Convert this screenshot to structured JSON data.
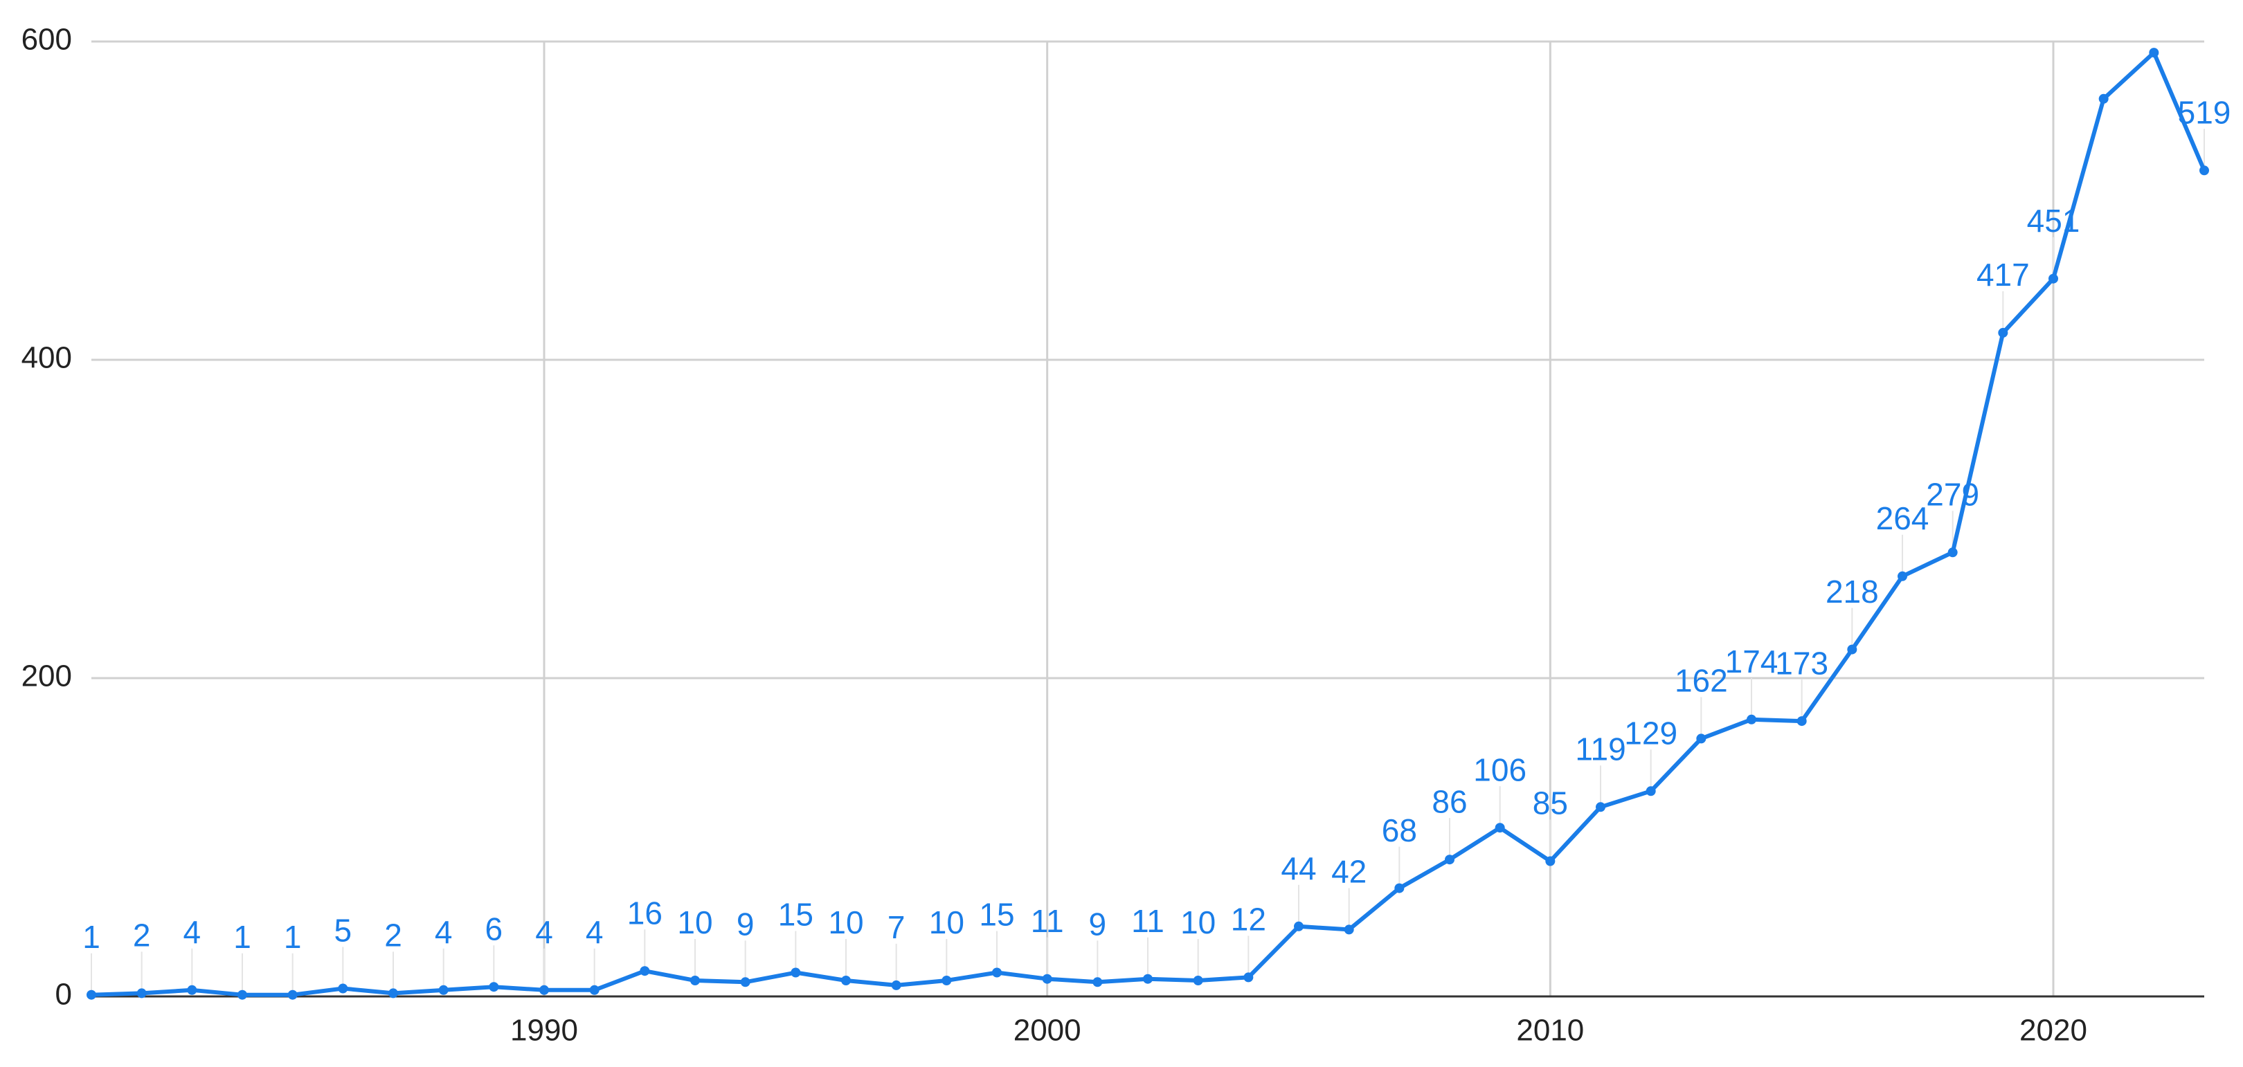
{
  "chart_data": {
    "type": "line",
    "x": [
      1981,
      1982,
      1983,
      1984,
      1985,
      1986,
      1987,
      1988,
      1989,
      1990,
      1991,
      1992,
      1993,
      1994,
      1995,
      1996,
      1997,
      1998,
      1999,
      2000,
      2001,
      2002,
      2003,
      2004,
      2005,
      2006,
      2007,
      2008,
      2009,
      2010,
      2011,
      2012,
      2013,
      2014,
      2015,
      2016,
      2017,
      2018,
      2019,
      2020,
      2021,
      2022,
      2023
    ],
    "values": [
      1,
      2,
      4,
      1,
      1,
      5,
      2,
      4,
      6,
      4,
      4,
      16,
      10,
      9,
      15,
      10,
      7,
      10,
      15,
      11,
      9,
      11,
      10,
      12,
      44,
      42,
      68,
      86,
      106,
      85,
      119,
      129,
      162,
      174,
      173,
      218,
      264,
      279,
      417,
      451,
      564,
      593,
      519
    ],
    "value_labels": [
      "1",
      "2",
      "4",
      "1",
      "1",
      "5",
      "2",
      "4",
      "6",
      "4",
      "4",
      "16",
      "10",
      "9",
      "15",
      "10",
      "7",
      "10",
      "15",
      "11",
      "9",
      "11",
      "10",
      "12",
      "44",
      "42",
      "68",
      "86",
      "106",
      "85",
      "119",
      "129",
      "162",
      "174",
      "173",
      "218",
      "264",
      "279",
      "417",
      "451",
      null,
      null,
      "519"
    ],
    "color": "#1a7de8",
    "xlim": [
      1981,
      2023
    ],
    "xticks": [
      1990,
      2000,
      2010,
      2020
    ],
    "ylim": [
      0,
      600
    ],
    "yticks": [
      0,
      200,
      400,
      600
    ],
    "grid": true
  }
}
